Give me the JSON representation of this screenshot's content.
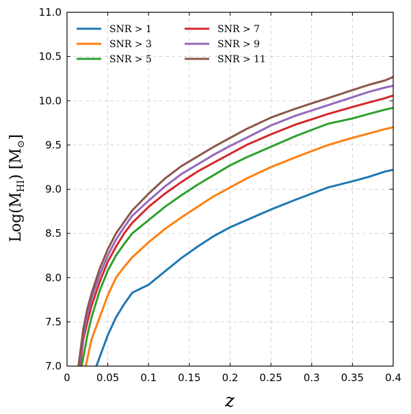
{
  "chart_data": {
    "type": "line",
    "title": "",
    "xlabel": "z",
    "ylabel_main": "Log(M",
    "ylabel_sub": "HI",
    "ylabel_tail": ") [M",
    "ylabel_sun": "⊙",
    "ylabel_end": "]",
    "xlim": [
      0,
      0.4
    ],
    "ylim": [
      7.0,
      11.0
    ],
    "grid": true,
    "legend_placement": "top-left",
    "x_ticks": [
      0,
      0.05,
      0.1,
      0.15,
      0.2,
      0.25,
      0.3,
      0.35,
      0.4
    ],
    "x_tick_labels": [
      "0",
      "0.05",
      "0.1",
      "0.15",
      "0.2",
      "0.25",
      "0.3",
      "0.35",
      "0.4"
    ],
    "y_ticks": [
      7.0,
      7.5,
      8.0,
      8.5,
      9.0,
      9.5,
      10.0,
      10.5,
      11.0
    ],
    "y_tick_labels": [
      "7.0",
      "7.5",
      "8.0",
      "8.5",
      "9.0",
      "9.5",
      "10.0",
      "10.5",
      "11.0"
    ],
    "series": [
      {
        "name": "SNR > 1",
        "color": "#1f77b4",
        "x": [
          0.036,
          0.04,
          0.05,
          0.06,
          0.07,
          0.08,
          0.1,
          0.12,
          0.14,
          0.16,
          0.18,
          0.2,
          0.22,
          0.25,
          0.28,
          0.3,
          0.32,
          0.35,
          0.37,
          0.39,
          0.4
        ],
        "y": [
          7.0,
          7.1,
          7.35,
          7.55,
          7.7,
          7.83,
          7.92,
          8.07,
          8.22,
          8.35,
          8.47,
          8.57,
          8.65,
          8.77,
          8.88,
          8.95,
          9.02,
          9.09,
          9.14,
          9.2,
          9.22
        ]
      },
      {
        "name": "SNR > 3",
        "color": "#ff7f0e",
        "x": [
          0.023,
          0.03,
          0.04,
          0.05,
          0.06,
          0.07,
          0.08,
          0.1,
          0.12,
          0.14,
          0.16,
          0.18,
          0.2,
          0.22,
          0.25,
          0.28,
          0.3,
          0.32,
          0.35,
          0.37,
          0.39,
          0.4
        ],
        "y": [
          7.0,
          7.3,
          7.55,
          7.8,
          8.0,
          8.12,
          8.23,
          8.4,
          8.55,
          8.68,
          8.8,
          8.92,
          9.02,
          9.12,
          9.25,
          9.36,
          9.43,
          9.5,
          9.58,
          9.63,
          9.68,
          9.7
        ]
      },
      {
        "name": "SNR > 5",
        "color": "#2ca02c",
        "x": [
          0.018,
          0.025,
          0.03,
          0.04,
          0.05,
          0.06,
          0.07,
          0.08,
          0.1,
          0.12,
          0.14,
          0.16,
          0.18,
          0.2,
          0.22,
          0.25,
          0.28,
          0.3,
          0.32,
          0.35,
          0.37,
          0.39,
          0.4
        ],
        "y": [
          7.0,
          7.35,
          7.55,
          7.85,
          8.08,
          8.25,
          8.38,
          8.5,
          8.65,
          8.8,
          8.93,
          9.05,
          9.16,
          9.27,
          9.36,
          9.48,
          9.6,
          9.67,
          9.74,
          9.8,
          9.85,
          9.9,
          9.92
        ]
      },
      {
        "name": "SNR > 7",
        "color": "#d62728",
        "x": [
          0.016,
          0.02,
          0.025,
          0.03,
          0.04,
          0.05,
          0.06,
          0.07,
          0.08,
          0.1,
          0.12,
          0.14,
          0.16,
          0.18,
          0.2,
          0.22,
          0.25,
          0.28,
          0.3,
          0.32,
          0.35,
          0.37,
          0.39,
          0.4
        ],
        "y": [
          7.0,
          7.3,
          7.5,
          7.68,
          7.95,
          8.18,
          8.35,
          8.5,
          8.62,
          8.8,
          8.95,
          9.08,
          9.2,
          9.3,
          9.4,
          9.5,
          9.62,
          9.73,
          9.79,
          9.85,
          9.93,
          9.98,
          10.03,
          10.06
        ]
      },
      {
        "name": "SNR > 9",
        "color": "#9467bd",
        "x": [
          0.015,
          0.02,
          0.025,
          0.03,
          0.04,
          0.05,
          0.06,
          0.07,
          0.08,
          0.1,
          0.12,
          0.14,
          0.16,
          0.18,
          0.2,
          0.22,
          0.25,
          0.28,
          0.3,
          0.32,
          0.35,
          0.37,
          0.39,
          0.4
        ],
        "y": [
          7.0,
          7.35,
          7.58,
          7.76,
          8.03,
          8.25,
          8.43,
          8.57,
          8.7,
          8.87,
          9.03,
          9.17,
          9.28,
          9.39,
          9.49,
          9.58,
          9.72,
          9.83,
          9.89,
          9.95,
          10.04,
          10.1,
          10.15,
          10.17
        ]
      },
      {
        "name": "SNR > 11",
        "color": "#8c564b",
        "x": [
          0.014,
          0.02,
          0.025,
          0.03,
          0.04,
          0.05,
          0.06,
          0.07,
          0.08,
          0.1,
          0.12,
          0.14,
          0.16,
          0.18,
          0.2,
          0.22,
          0.25,
          0.28,
          0.3,
          0.32,
          0.35,
          0.37,
          0.39,
          0.4
        ],
        "y": [
          7.0,
          7.42,
          7.65,
          7.82,
          8.1,
          8.32,
          8.5,
          8.63,
          8.76,
          8.95,
          9.12,
          9.26,
          9.37,
          9.48,
          9.58,
          9.68,
          9.81,
          9.91,
          9.97,
          10.03,
          10.12,
          10.18,
          10.23,
          10.27
        ]
      }
    ]
  }
}
